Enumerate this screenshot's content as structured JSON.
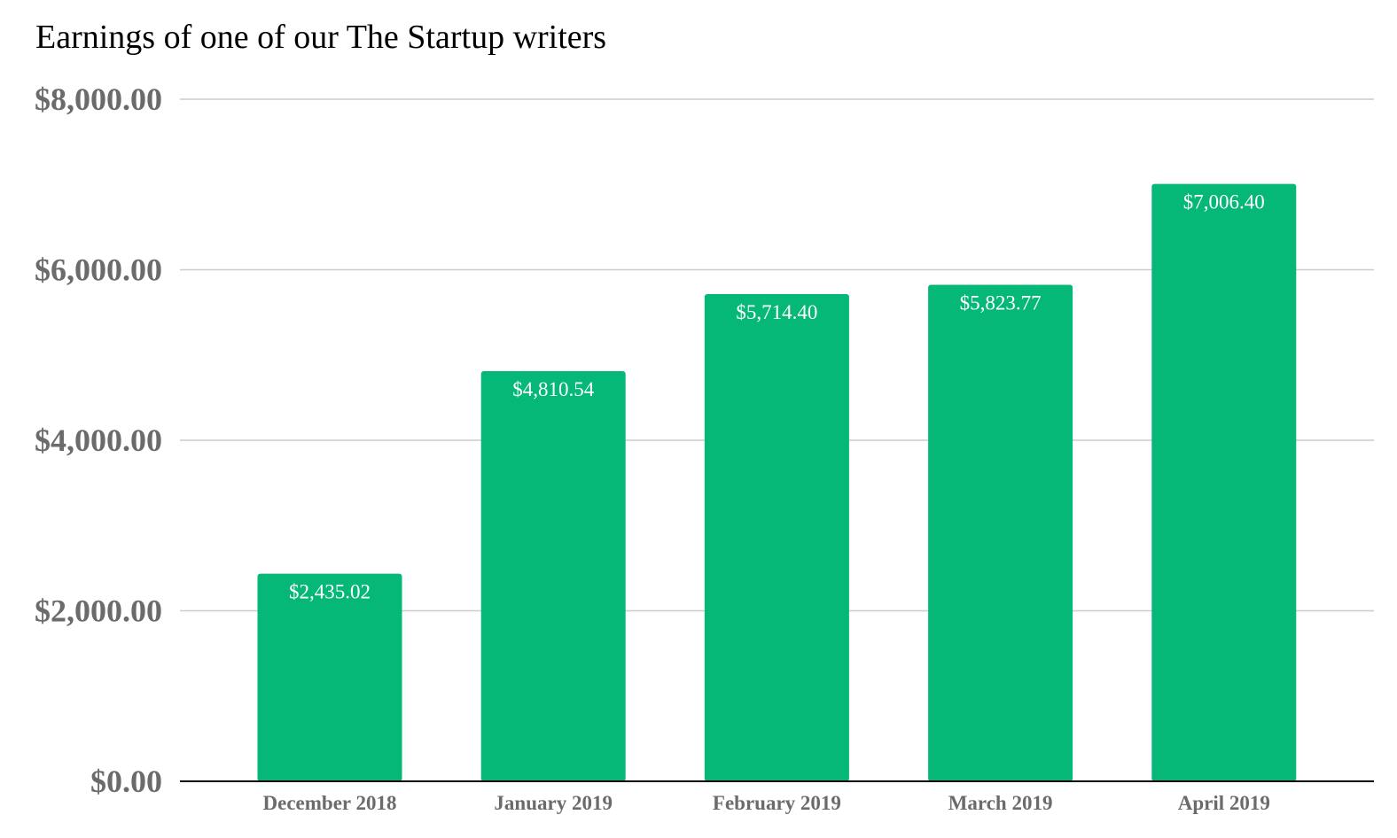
{
  "chart_data": {
    "type": "bar",
    "title": "Earnings of one of our The Startup writers",
    "xlabel": "",
    "ylabel": "",
    "categories": [
      "December 2018",
      "January 2019",
      "February 2019",
      "March 2019",
      "April 2019"
    ],
    "values": [
      2435.02,
      4810.54,
      5714.4,
      5823.77,
      7006.4
    ],
    "data_labels": [
      "$2,435.02",
      "$4,810.54",
      "$5,714.40",
      "$5,823.77",
      "$7,006.40"
    ],
    "ylim": [
      0,
      8000
    ],
    "yticks": [
      0,
      2000,
      4000,
      6000,
      8000
    ],
    "ytick_labels": [
      "$0.00",
      "$2,000.00",
      "$4,000.00",
      "$6,000.00",
      "$8,000.00"
    ],
    "grid": true,
    "legend": "none",
    "bar_color": "#05b878"
  }
}
